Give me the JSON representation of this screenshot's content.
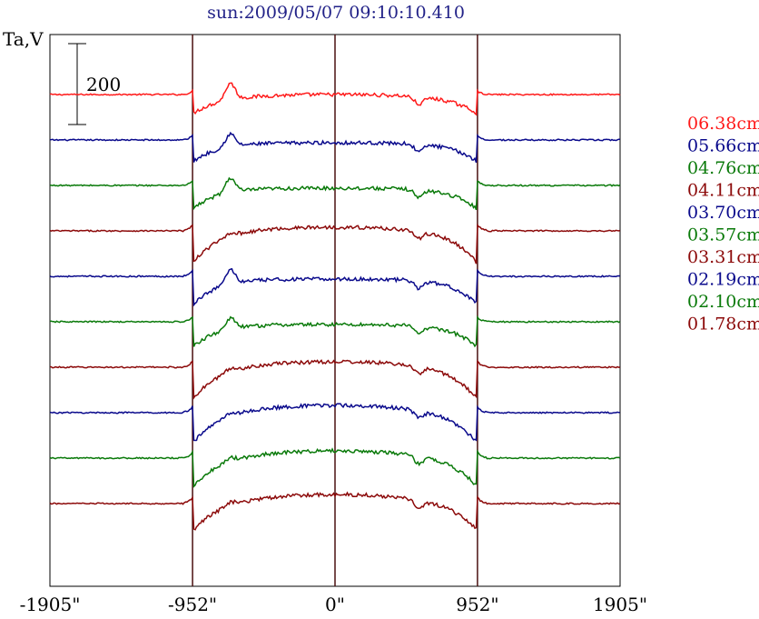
{
  "chart_data": {
    "type": "line",
    "title": "sun:2009/05/07 09:10:10.410",
    "ylabel": "Ta,V",
    "scale_bar": {
      "label": "200",
      "value": 200
    },
    "x_ticks": [
      {
        "value": -1905,
        "label": "-1905\""
      },
      {
        "value": -952,
        "label": "-952\""
      },
      {
        "value": 0,
        "label": "0\""
      },
      {
        "value": 952,
        "label": "952\""
      },
      {
        "value": 1905,
        "label": "1905\""
      }
    ],
    "xlim": [
      -1905,
      1905
    ],
    "vertical_lines": [
      -952,
      0,
      952
    ],
    "grid": false,
    "legend_position": "right",
    "series": [
      {
        "name": "06.38cm",
        "color": "#ff1a1a",
        "baseline": 0,
        "limb_amp": 8,
        "disk": 6,
        "dip": 15,
        "peak": 18
      },
      {
        "name": "05.66cm",
        "color": "#0a0a8c",
        "baseline": 0,
        "limb_amp": 10,
        "disk": 3,
        "dip": 18,
        "peak": 14
      },
      {
        "name": "04.76cm",
        "color": "#0a7a0a",
        "baseline": 0,
        "limb_amp": 10,
        "disk": 3,
        "dip": 20,
        "peak": 16
      },
      {
        "name": "04.11cm",
        "color": "#8c0a0a",
        "baseline": 0,
        "limb_amp": 14,
        "disk": 10,
        "dip": 30,
        "peak": 4
      },
      {
        "name": "03.70cm",
        "color": "#0a0a8c",
        "baseline": 0,
        "limb_amp": 12,
        "disk": 3,
        "dip": 25,
        "peak": 16
      },
      {
        "name": "03.57cm",
        "color": "#0a7a0a",
        "baseline": 0,
        "limb_amp": 10,
        "disk": 3,
        "dip": 22,
        "peak": 12
      },
      {
        "name": "03.31cm",
        "color": "#8c0a0a",
        "baseline": 0,
        "limb_amp": 14,
        "disk": 12,
        "dip": 30,
        "peak": 4
      },
      {
        "name": "02.19cm",
        "color": "#0a0a8c",
        "baseline": 0,
        "limb_amp": 14,
        "disk": 14,
        "dip": 28,
        "peak": 4
      },
      {
        "name": "02.10cm",
        "color": "#0a7a0a",
        "baseline": 0,
        "limb_amp": 14,
        "disk": 14,
        "dip": 26,
        "peak": 4
      },
      {
        "name": "01.78cm",
        "color": "#8c0a0a",
        "baseline": 0,
        "limb_amp": 14,
        "disk": 16,
        "dip": 24,
        "peak": 4
      }
    ]
  }
}
